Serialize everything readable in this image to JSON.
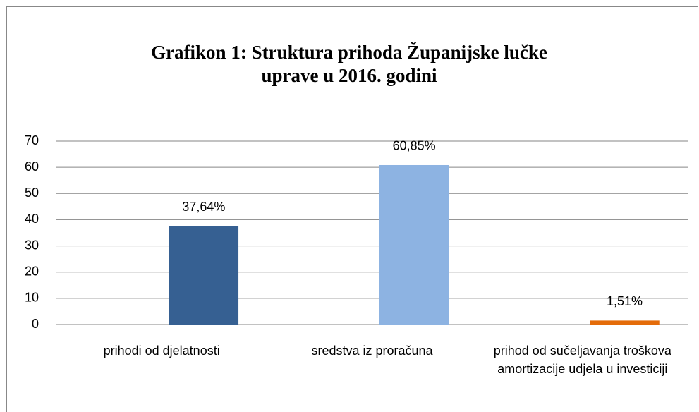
{
  "chart_data": {
    "type": "bar",
    "title": "Grafikon 1: Struktura prihoda Županijske lučke uprave u 2016. godini",
    "categories": [
      "prihodi od djelatnosti",
      "sredstva iz proračuna",
      "prihod od sučeljavanja troškova amortizacije udjela u investiciji"
    ],
    "values": [
      37.64,
      60.85,
      1.51
    ],
    "value_labels": [
      "37,64%",
      "60,85%",
      "1,51%"
    ],
    "colors": [
      "#366092",
      "#8db3e2",
      "#e46c0a"
    ],
    "ylim": [
      0,
      70
    ],
    "yticks": [
      0,
      10,
      20,
      30,
      40,
      50,
      60,
      70
    ],
    "grid": true
  }
}
